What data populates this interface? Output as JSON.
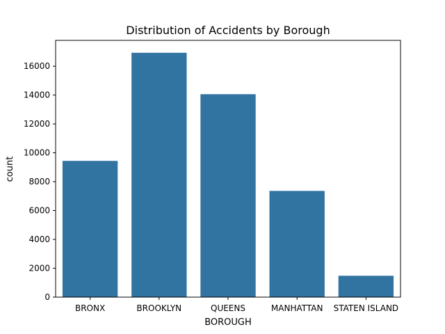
{
  "chart_data": {
    "type": "bar",
    "title": "Distribution of Accidents by Borough",
    "xlabel": "BOROUGH",
    "ylabel": "count",
    "categories": [
      "BRONX",
      "BROOKLYN",
      "QUEENS",
      "MANHATTAN",
      "STATEN ISLAND"
    ],
    "values": [
      9440,
      16930,
      14060,
      7360,
      1480
    ],
    "ylim": [
      0,
      17790
    ],
    "yticks": [
      0,
      2000,
      4000,
      6000,
      8000,
      10000,
      12000,
      14000,
      16000
    ],
    "grid": false,
    "bar_color": "#3274a1"
  }
}
